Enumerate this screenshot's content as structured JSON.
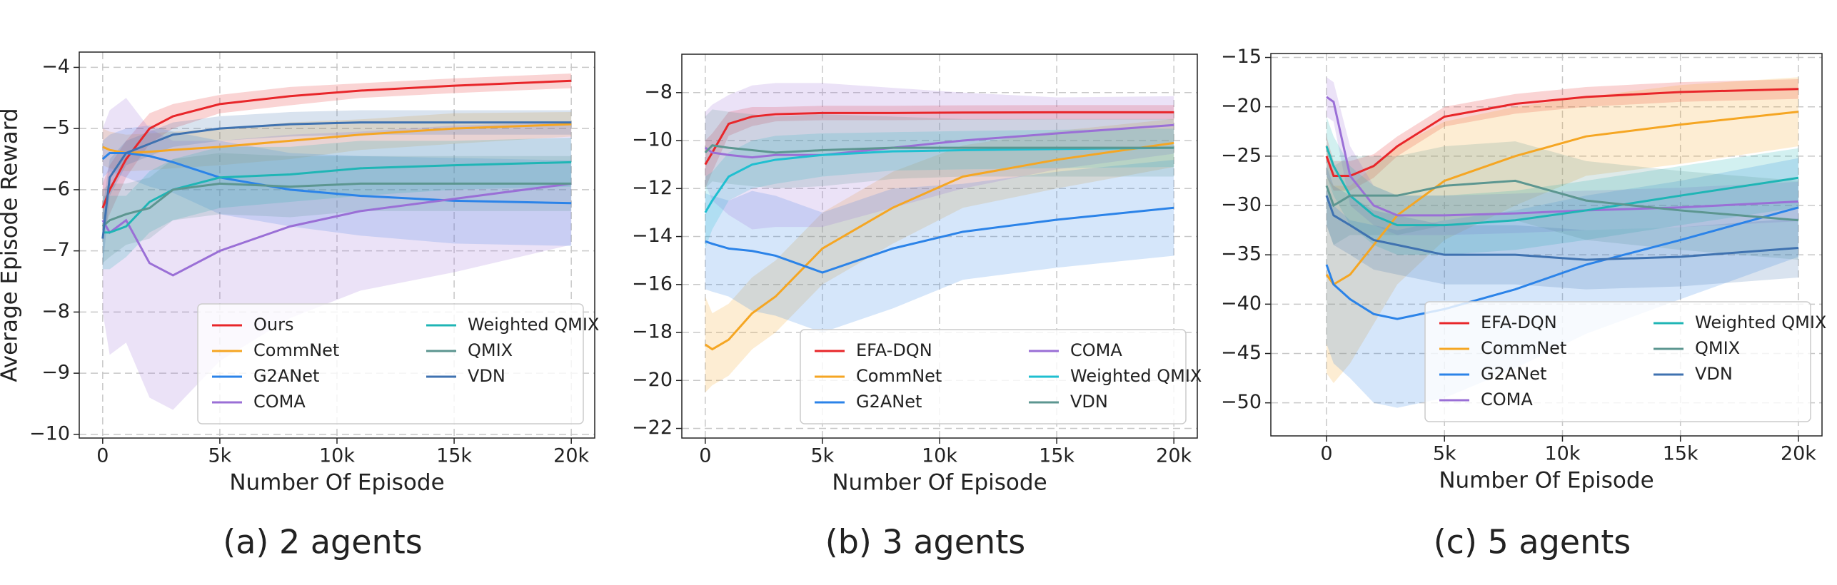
{
  "chart_data": [
    {
      "type": "line",
      "caption": "(a)  2 agents",
      "y_label": "Average Episode Reward",
      "x_label": "Number Of Episode",
      "x": [
        0,
        300,
        1000,
        2000,
        3000,
        5000,
        8000,
        11000,
        15000,
        20000
      ],
      "xlim": [
        -1000,
        21000
      ],
      "ylim": [
        -10.06,
        -3.75
      ],
      "xticks": [
        0,
        {
          "value": 5000,
          "label": "5k"
        },
        {
          "value": 10000,
          "label": "10k"
        },
        {
          "value": 15000,
          "label": "15k"
        },
        {
          "value": 20000,
          "label": "20k"
        }
      ],
      "yticks": [
        {
          "value": -10,
          "label": "−10"
        },
        {
          "value": -9,
          "label": "−9"
        },
        {
          "value": -8,
          "label": "−8"
        },
        {
          "value": -7,
          "label": "−7"
        },
        {
          "value": -6,
          "label": "−6"
        },
        {
          "value": -5,
          "label": "−5"
        },
        {
          "value": -4,
          "label": "−4"
        }
      ],
      "grid": true,
      "legend": "lower right",
      "series": [
        {
          "name": "Ours",
          "color": "#e8262a",
          "values": [
            -6.3,
            -6.0,
            -5.5,
            -5.0,
            -4.8,
            -4.6,
            -4.47,
            -4.38,
            -4.3,
            -4.22
          ],
          "error": [
            0.4,
            0.4,
            0.3,
            0.25,
            0.2,
            0.15,
            0.15,
            0.12,
            0.12,
            0.12
          ]
        },
        {
          "name": "CommNet",
          "color": "#f5a623",
          "values": [
            -5.3,
            -5.35,
            -5.4,
            -5.38,
            -5.35,
            -5.3,
            -5.2,
            -5.1,
            -5.0,
            -4.93
          ],
          "error": [
            0.3,
            0.3,
            0.3,
            0.3,
            0.3,
            0.3,
            0.3,
            0.25,
            0.25,
            0.2
          ]
        },
        {
          "name": "G2ANet",
          "color": "#2b83e8",
          "values": [
            -5.5,
            -5.4,
            -5.4,
            -5.45,
            -5.55,
            -5.8,
            -6.0,
            -6.1,
            -6.18,
            -6.22
          ],
          "error": [
            0.3,
            0.3,
            0.4,
            0.5,
            0.5,
            0.6,
            0.6,
            0.65,
            0.7,
            0.7
          ]
        },
        {
          "name": "COMA",
          "color": "#9a6fd6",
          "values": [
            -6.5,
            -6.7,
            -6.5,
            -7.2,
            -7.4,
            -7.0,
            -6.6,
            -6.35,
            -6.15,
            -5.9
          ],
          "error": [
            1.5,
            2.0,
            2.0,
            2.2,
            2.2,
            1.8,
            1.5,
            1.3,
            1.2,
            1.0
          ]
        },
        {
          "name": "Weighted QMIX",
          "color": "#1fb5b5",
          "values": [
            -6.7,
            -6.7,
            -6.6,
            -6.2,
            -6.0,
            -5.8,
            -5.75,
            -5.65,
            -5.6,
            -5.55
          ],
          "error": [
            0.6,
            0.6,
            0.5,
            0.5,
            0.5,
            0.5,
            0.45,
            0.45,
            0.4,
            0.4
          ]
        },
        {
          "name": "QMIX",
          "color": "#5c9690",
          "values": [
            -6.6,
            -6.5,
            -6.4,
            -6.3,
            -6.0,
            -5.9,
            -5.95,
            -5.9,
            -5.9,
            -5.9
          ],
          "error": [
            0.6,
            0.6,
            0.5,
            0.5,
            0.5,
            0.5,
            0.5,
            0.45,
            0.45,
            0.45
          ]
        },
        {
          "name": "VDN",
          "color": "#3f72b0",
          "values": [
            -6.8,
            -5.8,
            -5.4,
            -5.25,
            -5.1,
            -5.0,
            -4.93,
            -4.9,
            -4.9,
            -4.9
          ],
          "error": [
            0.5,
            0.3,
            0.2,
            0.2,
            0.2,
            0.2,
            0.2,
            0.2,
            0.2,
            0.2
          ]
        }
      ]
    },
    {
      "type": "line",
      "caption": "(b)  3 agents",
      "x_label": "Number Of Episode",
      "x": [
        0,
        300,
        1000,
        2000,
        3000,
        5000,
        8000,
        11000,
        15000,
        20000
      ],
      "xlim": [
        -1000,
        21000
      ],
      "ylim": [
        -22.4,
        -6.4
      ],
      "xticks": [
        0,
        {
          "value": 5000,
          "label": "5k"
        },
        {
          "value": 10000,
          "label": "10k"
        },
        {
          "value": 15000,
          "label": "15k"
        },
        {
          "value": 20000,
          "label": "20k"
        }
      ],
      "yticks": [
        {
          "value": -22,
          "label": "−22"
        },
        {
          "value": -20,
          "label": "−20"
        },
        {
          "value": -18,
          "label": "−18"
        },
        {
          "value": -16,
          "label": "−16"
        },
        {
          "value": -14,
          "label": "−14"
        },
        {
          "value": -12,
          "label": "−12"
        },
        {
          "value": -10,
          "label": "−10"
        },
        {
          "value": -8,
          "label": "−8"
        }
      ],
      "grid": true,
      "legend": "lower right",
      "series": [
        {
          "name": "EFA-DQN",
          "color": "#e8262a",
          "values": [
            -11,
            -10.5,
            -9.3,
            -9.0,
            -8.9,
            -8.85,
            -8.85,
            -8.83,
            -8.82,
            -8.82
          ],
          "error": [
            1.0,
            0.8,
            0.5,
            0.4,
            0.3,
            0.3,
            0.3,
            0.3,
            0.3,
            0.3
          ]
        },
        {
          "name": "CommNet",
          "color": "#f5a623",
          "values": [
            -18.5,
            -18.7,
            -18.3,
            -17.2,
            -16.5,
            -14.5,
            -12.8,
            -11.5,
            -10.8,
            -10.1
          ],
          "error": [
            2.0,
            1.5,
            1.5,
            1.5,
            1.5,
            1.5,
            1.5,
            1.3,
            1.2,
            1.0
          ]
        },
        {
          "name": "G2ANet",
          "color": "#2b83e8",
          "values": [
            -14.2,
            -14.3,
            -14.5,
            -14.6,
            -14.8,
            -15.5,
            -14.5,
            -13.8,
            -13.3,
            -12.8
          ],
          "error": [
            2.0,
            2.0,
            2.0,
            2.5,
            2.5,
            2.5,
            2.5,
            2.0,
            2.0,
            2.0
          ]
        },
        {
          "name": "COMA",
          "color": "#9a6fd6",
          "values": [
            -10.3,
            -10.5,
            -10.6,
            -10.7,
            -10.6,
            -10.6,
            -10.3,
            -10.0,
            -9.7,
            -9.35
          ],
          "error": [
            1.5,
            2.0,
            2.5,
            3.0,
            3.0,
            3.0,
            2.5,
            2.0,
            1.5,
            1.2
          ]
        },
        {
          "name": "Weighted QMIX",
          "color": "#1fbfd0",
          "values": [
            -13,
            -12.5,
            -11.5,
            -11,
            -10.8,
            -10.6,
            -10.45,
            -10.4,
            -10.35,
            -10.3
          ],
          "error": [
            1.5,
            1.2,
            1.0,
            1.0,
            1.0,
            0.9,
            0.8,
            0.8,
            0.8,
            0.8
          ]
        },
        {
          "name": "VDN",
          "color": "#5c9690",
          "values": [
            -10.5,
            -10.2,
            -10.3,
            -10.4,
            -10.5,
            -10.4,
            -10.3,
            -10.3,
            -10.3,
            -10.3
          ],
          "error": [
            1.5,
            1.5,
            1.5,
            1.5,
            1.5,
            1.5,
            1.3,
            1.2,
            1.2,
            1.2
          ]
        }
      ]
    },
    {
      "type": "line",
      "caption": "(c)  5 agents",
      "x_label": "Number Of Episode",
      "x": [
        0,
        300,
        1000,
        2000,
        3000,
        5000,
        8000,
        11000,
        15000,
        20000
      ],
      "xlim": [
        -2360,
        21000
      ],
      "ylim": [
        -53.35,
        -14.6
      ],
      "xticks": [
        0,
        {
          "value": 5000,
          "label": "5k"
        },
        {
          "value": 10000,
          "label": "10k"
        },
        {
          "value": 15000,
          "label": "15k"
        },
        {
          "value": 20000,
          "label": "20k"
        }
      ],
      "yticks": [
        {
          "value": -50,
          "label": "−50"
        },
        {
          "value": -45,
          "label": "−45"
        },
        {
          "value": -40,
          "label": "−40"
        },
        {
          "value": -35,
          "label": "−35"
        },
        {
          "value": -30,
          "label": "−30"
        },
        {
          "value": -25,
          "label": "−25"
        },
        {
          "value": -20,
          "label": "−20"
        },
        {
          "value": -15,
          "label": "−15"
        }
      ],
      "grid": true,
      "legend": "lower right",
      "series": [
        {
          "name": "EFA-DQN",
          "color": "#e8262a",
          "values": [
            -25,
            -27,
            -27,
            -26,
            -24,
            -21,
            -19.7,
            -19,
            -18.5,
            -18.2
          ],
          "error": [
            2,
            1.5,
            1.5,
            1.2,
            1.0,
            1.0,
            1.0,
            1.0,
            1.0,
            1.0
          ]
        },
        {
          "name": "CommNet",
          "color": "#f5a623",
          "values": [
            -37,
            -38,
            -37,
            -34,
            -31,
            -27.5,
            -25,
            -23,
            -21.8,
            -20.5
          ],
          "error": [
            10,
            10,
            9,
            8,
            7,
            6,
            5,
            4,
            4,
            3.5
          ]
        },
        {
          "name": "G2ANet",
          "color": "#2b83e8",
          "values": [
            -36,
            -38,
            -39.5,
            -41,
            -41.5,
            -40.5,
            -38.5,
            -36,
            -33.5,
            -30.2
          ],
          "error": [
            8,
            8,
            8,
            9,
            9,
            9,
            8,
            7,
            6,
            5
          ]
        },
        {
          "name": "COMA",
          "color": "#9a6fd6",
          "values": [
            -19,
            -19.5,
            -27,
            -30,
            -31,
            -31,
            -30.8,
            -30.5,
            -30.2,
            -29.6
          ],
          "error": [
            2,
            2,
            3,
            2,
            2,
            2,
            2,
            2,
            2,
            2
          ]
        },
        {
          "name": "Weighted QMIX",
          "color": "#1fb5b5",
          "values": [
            -24,
            -26,
            -29,
            -31,
            -32,
            -32,
            -31.5,
            -30.5,
            -29,
            -27.2
          ],
          "error": [
            3,
            3,
            3,
            3,
            3,
            3,
            3,
            3,
            3,
            3
          ]
        },
        {
          "name": "QMIX",
          "color": "#5c9690",
          "values": [
            -28,
            -30,
            -29,
            -29,
            -29,
            -28,
            -27.5,
            -29.5,
            -30.5,
            -31.5
          ],
          "error": [
            4,
            4,
            4,
            4,
            4,
            4,
            4,
            4,
            4,
            4
          ]
        },
        {
          "name": "VDN",
          "color": "#3f72b0",
          "values": [
            -29,
            -31,
            -32,
            -33.5,
            -34,
            -35,
            -35,
            -35.5,
            -35.2,
            -34.3
          ],
          "error": [
            3,
            3,
            3,
            3,
            3,
            3,
            3,
            3,
            3,
            3
          ]
        }
      ]
    }
  ]
}
